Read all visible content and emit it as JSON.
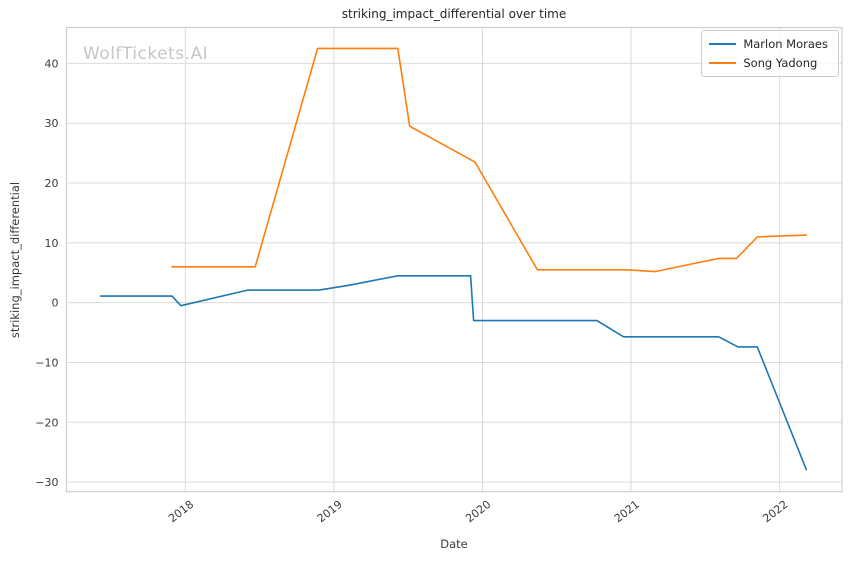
{
  "watermark": "WolfTickets.AI",
  "chart_data": {
    "type": "line",
    "title": "striking_impact_differential over time",
    "xlabel": "Date",
    "ylabel": "striking_impact_differential",
    "xlim": [
      2017.2,
      2022.42
    ],
    "ylim": [
      -31.6,
      46.0
    ],
    "x_ticks": [
      2018,
      2019,
      2020,
      2021,
      2022
    ],
    "y_ticks": [
      40,
      30,
      20,
      10,
      0,
      -10,
      -20,
      -30
    ],
    "grid": true,
    "legend_position": "upper right",
    "x_unit": "decimal_year",
    "series": [
      {
        "name": "Marlon Moraes",
        "color": "#1f77b4",
        "points": [
          [
            2017.43,
            1.1
          ],
          [
            2017.91,
            1.1
          ],
          [
            2017.97,
            -0.5
          ],
          [
            2018.42,
            2.1
          ],
          [
            2018.9,
            2.1
          ],
          [
            2019.1,
            2.9
          ],
          [
            2019.43,
            4.5
          ],
          [
            2019.92,
            4.5
          ],
          [
            2019.94,
            -3.0
          ],
          [
            2020.77,
            -3.0
          ],
          [
            2020.95,
            -5.7
          ],
          [
            2021.59,
            -5.7
          ],
          [
            2021.72,
            -7.4
          ],
          [
            2021.85,
            -7.4
          ],
          [
            2022.18,
            -27.9
          ]
        ]
      },
      {
        "name": "Song Yadong",
        "color": "#ff7f0e",
        "points": [
          [
            2017.91,
            6.0
          ],
          [
            2018.47,
            6.0
          ],
          [
            2018.89,
            42.5
          ],
          [
            2019.43,
            42.5
          ],
          [
            2019.51,
            29.5
          ],
          [
            2019.95,
            23.5
          ],
          [
            2020.37,
            5.5
          ],
          [
            2020.97,
            5.5
          ],
          [
            2021.16,
            5.2
          ],
          [
            2021.59,
            7.4
          ],
          [
            2021.71,
            7.4
          ],
          [
            2021.85,
            11.0
          ],
          [
            2022.18,
            11.3
          ]
        ]
      }
    ],
    "style": {
      "grid_color": "#dcdcdc",
      "spine_color": "#cfcfcf",
      "tick_label_color": "#3a3a3a",
      "watermark_color": "#c6c6c6",
      "line_width": 1.6
    }
  }
}
